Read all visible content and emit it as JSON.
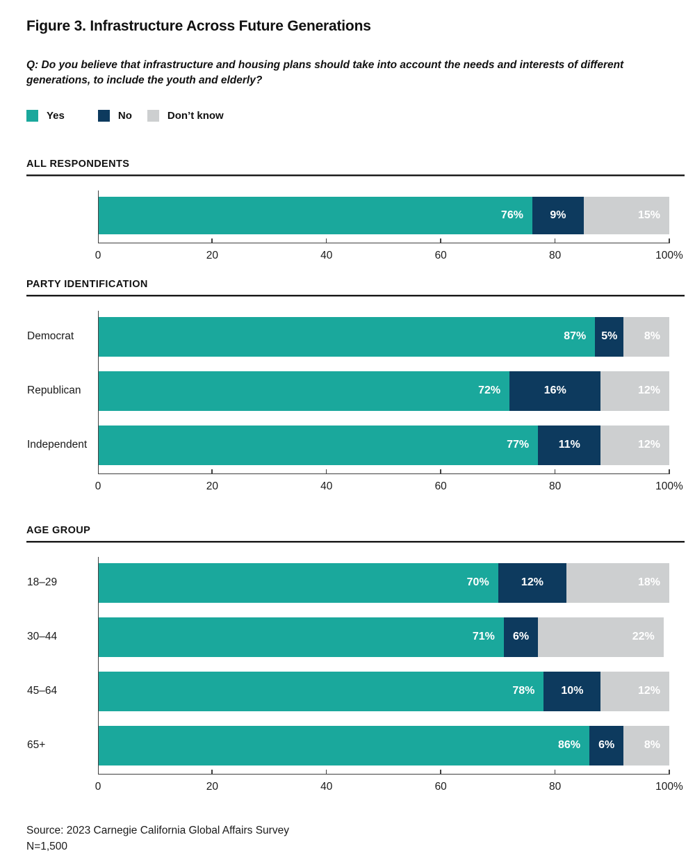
{
  "title": "Figure 3. Infrastructure Across Future Generations",
  "question": "Q: Do you believe that infrastructure and housing plans should take into account the needs and interests of different generations, to include the youth and elderly?",
  "legend": [
    {
      "label": "Yes",
      "color": "#1AA89C",
      "icon": "legend-swatch-yes"
    },
    {
      "label": "No",
      "color": "#0D3A5E",
      "icon": "legend-swatch-no"
    },
    {
      "label": "Don’t know",
      "color": "#CDCFD0",
      "icon": "legend-swatch-dont-know"
    }
  ],
  "colors": {
    "yes": "#1AA89C",
    "no": "#0D3A5E",
    "dont_know": "#CDCFD0",
    "text": "#1A1A1A",
    "axis": "#3F3F3F",
    "value_text": "#FFFFFF"
  },
  "axis": {
    "tick_values": [
      0,
      20,
      40,
      60,
      80,
      100
    ],
    "tick_labels": [
      "0",
      "20",
      "40",
      "60",
      "80",
      "100%"
    ]
  },
  "chart_data": [
    {
      "type": "bar",
      "stacked": true,
      "orientation": "horizontal",
      "section": "ALL RESPONDENTS",
      "categories": [
        ""
      ],
      "series": [
        {
          "name": "Yes",
          "values": [
            76
          ]
        },
        {
          "name": "No",
          "values": [
            9
          ]
        },
        {
          "name": "Don't know",
          "values": [
            15
          ]
        }
      ],
      "xlim": [
        0,
        100
      ],
      "value_suffix": "%"
    },
    {
      "type": "bar",
      "stacked": true,
      "orientation": "horizontal",
      "section": "PARTY IDENTIFICATION",
      "categories": [
        "Democrat",
        "Republican",
        "Independent"
      ],
      "series": [
        {
          "name": "Yes",
          "values": [
            87,
            72,
            77
          ]
        },
        {
          "name": "No",
          "values": [
            5,
            16,
            11
          ]
        },
        {
          "name": "Don't know",
          "values": [
            8,
            12,
            12
          ]
        }
      ],
      "xlim": [
        0,
        100
      ],
      "value_suffix": "%"
    },
    {
      "type": "bar",
      "stacked": true,
      "orientation": "horizontal",
      "section": "AGE GROUP",
      "categories": [
        "18–29",
        "30–44",
        "45–64",
        "65+"
      ],
      "series": [
        {
          "name": "Yes",
          "values": [
            70,
            71,
            78,
            86
          ]
        },
        {
          "name": "No",
          "values": [
            12,
            6,
            10,
            6
          ]
        },
        {
          "name": "Don't know",
          "values": [
            18,
            22,
            12,
            8
          ]
        }
      ],
      "xlim": [
        0,
        100
      ],
      "value_suffix": "%"
    }
  ],
  "source": {
    "line1": "Source: 2023 Carnegie California Global Affairs Survey",
    "line2": "N=1,500"
  }
}
